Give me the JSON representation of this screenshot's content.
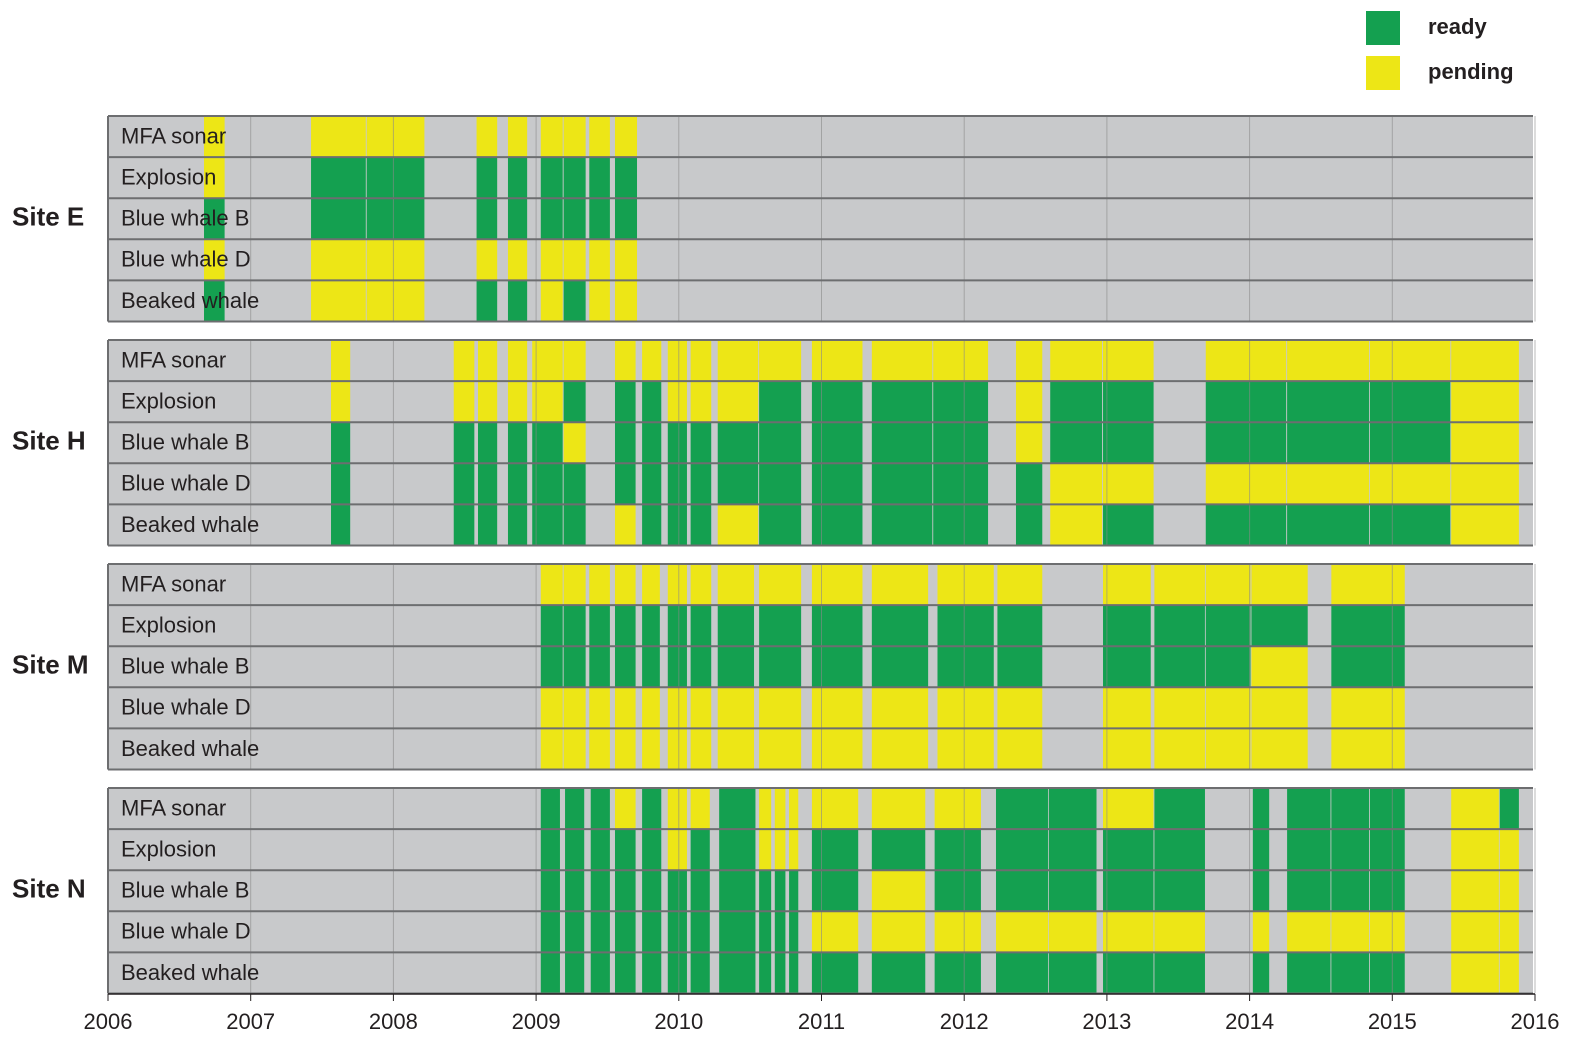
{
  "chart_data": {
    "type": "timeline",
    "xlim": [
      2006,
      2016
    ],
    "xticks": [
      2006,
      2007,
      2008,
      2009,
      2010,
      2011,
      2012,
      2013,
      2014,
      2015,
      2016
    ],
    "rows": [
      "MFA sonar",
      "Explosion",
      "Blue whale B",
      "Blue whale D",
      "Beaked whale"
    ],
    "series": [
      {
        "name": "ready",
        "color": "#14a050"
      },
      {
        "name": "pending",
        "color": "#ede616"
      }
    ],
    "background": "#c8c9cb",
    "sites": [
      {
        "name": "Site E",
        "segments": [
          {
            "x": [
              2006.67,
              2006.82
            ],
            "status": [
              "pending",
              "pending",
              "ready",
              "pending",
              "ready"
            ]
          },
          {
            "x": [
              2007.42,
              2007.81
            ],
            "status": [
              "pending",
              "ready",
              "ready",
              "pending",
              "pending"
            ]
          },
          {
            "x": [
              2007.81,
              2008.22
            ],
            "status": [
              "pending",
              "ready",
              "ready",
              "pending",
              "pending"
            ]
          },
          {
            "x": [
              2008.58,
              2008.73
            ],
            "status": [
              "pending",
              "ready",
              "ready",
              "pending",
              "ready"
            ]
          },
          {
            "x": [
              2008.8,
              2008.94
            ],
            "status": [
              "pending",
              "ready",
              "ready",
              "pending",
              "ready"
            ]
          },
          {
            "x": [
              2009.03,
              2009.19
            ],
            "status": [
              "pending",
              "ready",
              "ready",
              "pending",
              "pending"
            ]
          },
          {
            "x": [
              2009.19,
              2009.35
            ],
            "status": [
              "pending",
              "ready",
              "ready",
              "pending",
              "ready"
            ]
          },
          {
            "x": [
              2009.37,
              2009.52
            ],
            "status": [
              "pending",
              "ready",
              "ready",
              "pending",
              "pending"
            ]
          },
          {
            "x": [
              2009.55,
              2009.71
            ],
            "status": [
              "pending",
              "ready",
              "ready",
              "pending",
              "pending"
            ]
          }
        ]
      },
      {
        "name": "Site H",
        "segments": [
          {
            "x": [
              2007.56,
              2007.7
            ],
            "status": [
              "pending",
              "pending",
              "ready",
              "ready",
              "ready"
            ]
          },
          {
            "x": [
              2008.42,
              2008.57
            ],
            "status": [
              "pending",
              "pending",
              "ready",
              "ready",
              "ready"
            ]
          },
          {
            "x": [
              2008.59,
              2008.73
            ],
            "status": [
              "pending",
              "pending",
              "ready",
              "ready",
              "ready"
            ]
          },
          {
            "x": [
              2008.8,
              2008.94
            ],
            "status": [
              "pending",
              "pending",
              "ready",
              "ready",
              "ready"
            ]
          },
          {
            "x": [
              2008.97,
              2009.19
            ],
            "status": [
              "pending",
              "pending",
              "ready",
              "ready",
              "ready"
            ]
          },
          {
            "x": [
              2009.19,
              2009.35
            ],
            "status": [
              "pending",
              "ready",
              "pending",
              "ready",
              "ready"
            ]
          },
          {
            "x": [
              2009.55,
              2009.7
            ],
            "status": [
              "pending",
              "ready",
              "ready",
              "ready",
              "pending"
            ]
          },
          {
            "x": [
              2009.74,
              2009.88
            ],
            "status": [
              "pending",
              "ready",
              "ready",
              "ready",
              "ready"
            ]
          },
          {
            "x": [
              2009.92,
              2010.06
            ],
            "status": [
              "pending",
              "pending",
              "ready",
              "ready",
              "ready"
            ]
          },
          {
            "x": [
              2010.08,
              2010.23
            ],
            "status": [
              "pending",
              "pending",
              "ready",
              "ready",
              "ready"
            ]
          },
          {
            "x": [
              2010.27,
              2010.56
            ],
            "status": [
              "pending",
              "pending",
              "ready",
              "ready",
              "pending"
            ]
          },
          {
            "x": [
              2010.56,
              2010.86
            ],
            "status": [
              "pending",
              "ready",
              "ready",
              "ready",
              "ready"
            ]
          },
          {
            "x": [
              2010.93,
              2011.29
            ],
            "status": [
              "pending",
              "ready",
              "ready",
              "ready",
              "ready"
            ]
          },
          {
            "x": [
              2011.35,
              2011.78
            ],
            "status": [
              "pending",
              "ready",
              "ready",
              "ready",
              "ready"
            ]
          },
          {
            "x": [
              2011.78,
              2012.17
            ],
            "status": [
              "pending",
              "ready",
              "ready",
              "ready",
              "ready"
            ]
          },
          {
            "x": [
              2012.36,
              2012.55
            ],
            "status": [
              "pending",
              "pending",
              "pending",
              "ready",
              "ready"
            ]
          },
          {
            "x": [
              2012.6,
              2012.97
            ],
            "status": [
              "pending",
              "ready",
              "ready",
              "pending",
              "pending"
            ]
          },
          {
            "x": [
              2012.97,
              2013.33
            ],
            "status": [
              "pending",
              "ready",
              "ready",
              "pending",
              "ready"
            ]
          },
          {
            "x": [
              2013.69,
              2014.26
            ],
            "status": [
              "pending",
              "ready",
              "ready",
              "pending",
              "ready"
            ]
          },
          {
            "x": [
              2014.26,
              2014.84
            ],
            "status": [
              "pending",
              "ready",
              "ready",
              "pending",
              "ready"
            ]
          },
          {
            "x": [
              2014.84,
              2015.41
            ],
            "status": [
              "pending",
              "ready",
              "ready",
              "pending",
              "ready"
            ]
          },
          {
            "x": [
              2015.41,
              2015.89
            ],
            "status": [
              "pending",
              "pending",
              "pending",
              "pending",
              "pending"
            ]
          }
        ]
      },
      {
        "name": "Site M",
        "segments": [
          {
            "x": [
              2009.03,
              2009.19
            ],
            "status": [
              "pending",
              "ready",
              "ready",
              "pending",
              "pending"
            ]
          },
          {
            "x": [
              2009.19,
              2009.35
            ],
            "status": [
              "pending",
              "ready",
              "ready",
              "pending",
              "pending"
            ]
          },
          {
            "x": [
              2009.37,
              2009.52
            ],
            "status": [
              "pending",
              "ready",
              "ready",
              "pending",
              "pending"
            ]
          },
          {
            "x": [
              2009.55,
              2009.7
            ],
            "status": [
              "pending",
              "ready",
              "ready",
              "pending",
              "pending"
            ]
          },
          {
            "x": [
              2009.74,
              2009.87
            ],
            "status": [
              "pending",
              "ready",
              "ready",
              "pending",
              "pending"
            ]
          },
          {
            "x": [
              2009.92,
              2010.06
            ],
            "status": [
              "pending",
              "ready",
              "ready",
              "pending",
              "pending"
            ]
          },
          {
            "x": [
              2010.08,
              2010.23
            ],
            "status": [
              "pending",
              "ready",
              "ready",
              "pending",
              "pending"
            ]
          },
          {
            "x": [
              2010.27,
              2010.53
            ],
            "status": [
              "pending",
              "ready",
              "ready",
              "pending",
              "pending"
            ]
          },
          {
            "x": [
              2010.56,
              2010.86
            ],
            "status": [
              "pending",
              "ready",
              "ready",
              "pending",
              "pending"
            ]
          },
          {
            "x": [
              2010.93,
              2011.29
            ],
            "status": [
              "pending",
              "ready",
              "ready",
              "pending",
              "pending"
            ]
          },
          {
            "x": [
              2011.35,
              2011.75
            ],
            "status": [
              "pending",
              "ready",
              "ready",
              "pending",
              "pending"
            ]
          },
          {
            "x": [
              2011.81,
              2012.21
            ],
            "status": [
              "pending",
              "ready",
              "ready",
              "pending",
              "pending"
            ]
          },
          {
            "x": [
              2012.23,
              2012.55
            ],
            "status": [
              "pending",
              "ready",
              "ready",
              "pending",
              "pending"
            ]
          },
          {
            "x": [
              2012.97,
              2013.31
            ],
            "status": [
              "pending",
              "ready",
              "ready",
              "pending",
              "pending"
            ]
          },
          {
            "x": [
              2013.33,
              2013.69
            ],
            "status": [
              "pending",
              "ready",
              "ready",
              "pending",
              "pending"
            ]
          },
          {
            "x": [
              2013.69,
              2014.01
            ],
            "status": [
              "pending",
              "ready",
              "ready",
              "pending",
              "pending"
            ]
          },
          {
            "x": [
              2014.01,
              2014.41
            ],
            "status": [
              "pending",
              "ready",
              "pending",
              "pending",
              "pending"
            ]
          },
          {
            "x": [
              2014.57,
              2015.09
            ],
            "status": [
              "pending",
              "ready",
              "ready",
              "pending",
              "pending"
            ]
          }
        ]
      },
      {
        "name": "Site N",
        "segments": [
          {
            "x": [
              2009.03,
              2009.17
            ],
            "status": [
              "ready",
              "ready",
              "ready",
              "ready",
              "ready"
            ]
          },
          {
            "x": [
              2009.2,
              2009.34
            ],
            "status": [
              "ready",
              "ready",
              "ready",
              "ready",
              "ready"
            ]
          },
          {
            "x": [
              2009.38,
              2009.52
            ],
            "status": [
              "ready",
              "ready",
              "ready",
              "ready",
              "ready"
            ]
          },
          {
            "x": [
              2009.55,
              2009.7
            ],
            "status": [
              "pending",
              "ready",
              "ready",
              "ready",
              "ready"
            ]
          },
          {
            "x": [
              2009.74,
              2009.88
            ],
            "status": [
              "ready",
              "ready",
              "ready",
              "ready",
              "ready"
            ]
          },
          {
            "x": [
              2009.92,
              2010.06
            ],
            "status": [
              "pending",
              "pending",
              "ready",
              "ready",
              "ready"
            ]
          },
          {
            "x": [
              2010.08,
              2010.22
            ],
            "status": [
              "pending",
              "ready",
              "ready",
              "ready",
              "ready"
            ]
          },
          {
            "x": [
              2010.28,
              2010.54
            ],
            "status": [
              "ready",
              "ready",
              "ready",
              "ready",
              "ready"
            ]
          },
          {
            "x": [
              2010.56,
              2010.65
            ],
            "status": [
              "pending",
              "pending",
              "ready",
              "ready",
              "ready"
            ]
          },
          {
            "x": [
              2010.67,
              2010.75
            ],
            "status": [
              "pending",
              "pending",
              "ready",
              "ready",
              "ready"
            ]
          },
          {
            "x": [
              2010.77,
              2010.84
            ],
            "status": [
              "pending",
              "pending",
              "ready",
              "ready",
              "ready"
            ]
          },
          {
            "x": [
              2010.93,
              2011.26
            ],
            "status": [
              "pending",
              "ready",
              "ready",
              "pending",
              "ready"
            ]
          },
          {
            "x": [
              2011.35,
              2011.73
            ],
            "status": [
              "pending",
              "ready",
              "pending",
              "pending",
              "ready"
            ]
          },
          {
            "x": [
              2011.79,
              2012.12
            ],
            "status": [
              "pending",
              "ready",
              "ready",
              "pending",
              "ready"
            ]
          },
          {
            "x": [
              2012.22,
              2012.59
            ],
            "status": [
              "ready",
              "ready",
              "ready",
              "pending",
              "ready"
            ]
          },
          {
            "x": [
              2012.59,
              2012.93
            ],
            "status": [
              "ready",
              "ready",
              "ready",
              "pending",
              "ready"
            ]
          },
          {
            "x": [
              2012.97,
              2013.33
            ],
            "status": [
              "pending",
              "ready",
              "ready",
              "pending",
              "ready"
            ]
          },
          {
            "x": [
              2013.33,
              2013.69
            ],
            "status": [
              "ready",
              "ready",
              "ready",
              "pending",
              "ready"
            ]
          },
          {
            "x": [
              2014.02,
              2014.14
            ],
            "status": [
              "ready",
              "ready",
              "ready",
              "pending",
              "ready"
            ]
          },
          {
            "x": [
              2014.26,
              2014.57
            ],
            "status": [
              "ready",
              "ready",
              "ready",
              "pending",
              "ready"
            ]
          },
          {
            "x": [
              2014.57,
              2014.84
            ],
            "status": [
              "ready",
              "ready",
              "ready",
              "pending",
              "ready"
            ]
          },
          {
            "x": [
              2014.84,
              2015.09
            ],
            "status": [
              "ready",
              "ready",
              "ready",
              "pending",
              "ready"
            ]
          },
          {
            "x": [
              2015.41,
              2015.75
            ],
            "status": [
              "pending",
              "pending",
              "pending",
              "pending",
              "pending"
            ]
          },
          {
            "x": [
              2015.75,
              2015.89
            ],
            "status": [
              "ready",
              "pending",
              "pending",
              "pending",
              "pending"
            ]
          }
        ]
      }
    ]
  }
}
